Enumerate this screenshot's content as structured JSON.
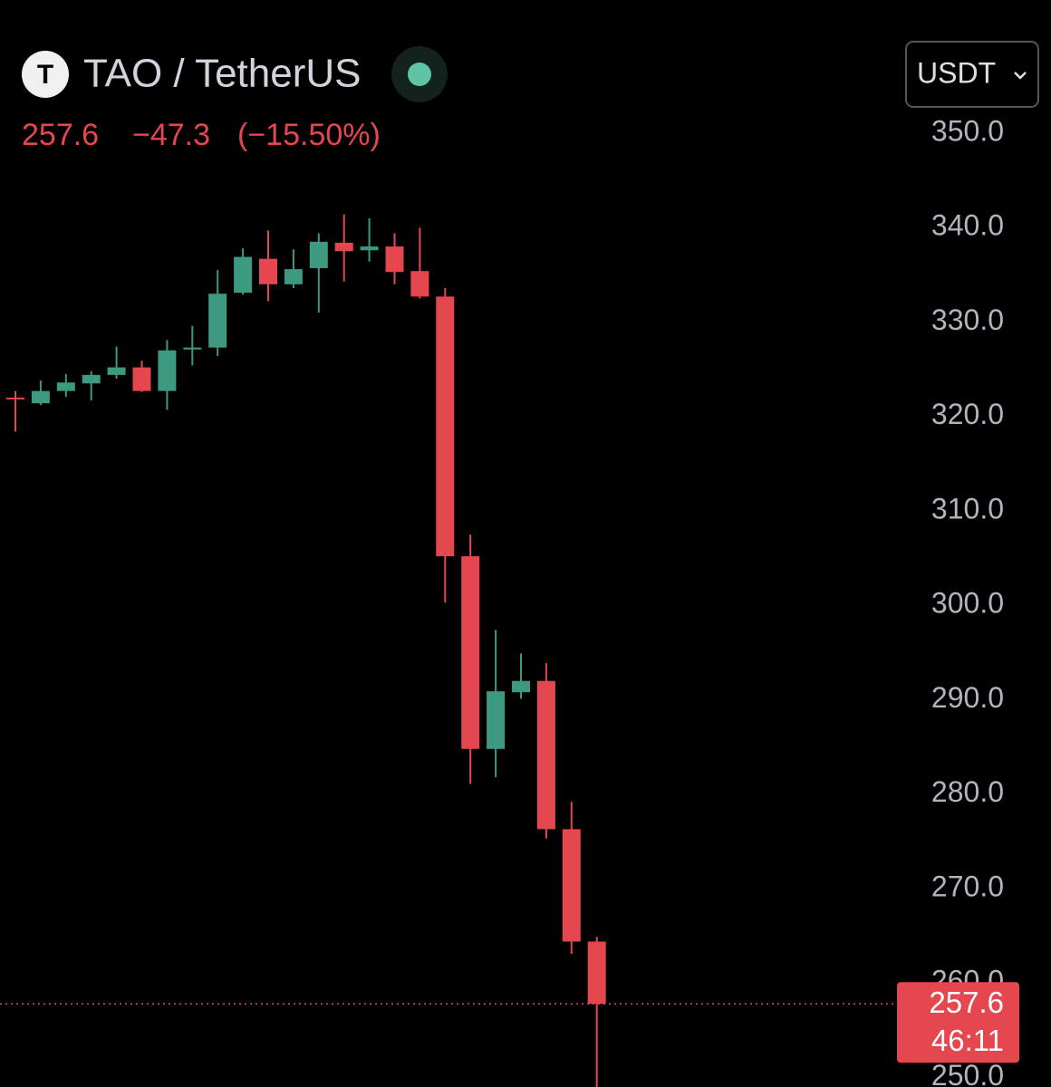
{
  "chart_data": {
    "type": "candlestick",
    "title": "TAO / TetherUS",
    "icon": "T",
    "currency": "USDT",
    "price": 257.6,
    "change": {
      "value": -47.3,
      "label": "−47.3"
    },
    "change_pct": {
      "value": -15.5,
      "label": "(−15.50%)"
    },
    "countdown": "46:11",
    "up_color": "#3d9a80",
    "down_color": "#e5474f",
    "categories": [
      null,
      null,
      null,
      null,
      null,
      null,
      null,
      null,
      null,
      null,
      null,
      null,
      null,
      null,
      null,
      null,
      null,
      null,
      null,
      null,
      null,
      null,
      null,
      null
    ],
    "open": [
      321.8,
      321.2,
      322.5,
      323.3,
      324.2,
      325.0,
      322.5,
      326.9,
      327.1,
      332.9,
      336.5,
      333.8,
      335.5,
      338.2,
      337.4,
      337.8,
      335.2,
      332.5,
      305.0,
      284.6,
      290.6,
      291.8,
      276.1,
      264.2
    ],
    "high": [
      322.5,
      323.6,
      324.3,
      324.6,
      327.2,
      325.7,
      327.9,
      329.4,
      335.3,
      337.6,
      339.5,
      337.5,
      339.2,
      341.2,
      340.8,
      339.2,
      339.8,
      333.4,
      307.3,
      297.2,
      294.7,
      293.7,
      279.0,
      264.7
    ],
    "low": [
      318.2,
      321.0,
      321.9,
      321.5,
      323.8,
      322.4,
      320.5,
      325.2,
      326.2,
      332.7,
      332.0,
      333.4,
      330.8,
      334.1,
      336.2,
      333.8,
      332.3,
      300.1,
      280.9,
      281.6,
      289.9,
      275.1,
      262.9,
      248.0
    ],
    "close": [
      321.7,
      322.5,
      323.4,
      324.2,
      325.0,
      322.5,
      326.8,
      327.1,
      332.8,
      336.7,
      333.8,
      335.4,
      338.3,
      337.3,
      337.8,
      335.1,
      332.5,
      305.0,
      284.6,
      290.7,
      291.8,
      276.1,
      264.2,
      257.6
    ],
    "ylim": [
      248.8,
      363.9
    ],
    "yticks": [
      {
        "value": 250,
        "label": "250.0"
      },
      {
        "value": 260,
        "label": "260.0"
      },
      {
        "value": 270,
        "label": "270.0"
      },
      {
        "value": 280,
        "label": "280.0"
      },
      {
        "value": 290,
        "label": "290.0"
      },
      {
        "value": 300,
        "label": "300.0"
      },
      {
        "value": 310,
        "label": "310.0"
      },
      {
        "value": 320,
        "label": "320.0"
      },
      {
        "value": 330,
        "label": "330.0"
      },
      {
        "value": 340,
        "label": "340.0"
      },
      {
        "value": 350,
        "label": "350.0"
      }
    ]
  }
}
